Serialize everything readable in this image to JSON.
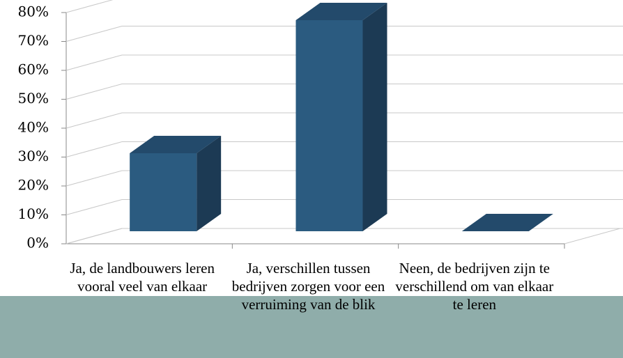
{
  "chart_data": {
    "type": "bar3d",
    "categories": [
      "Ja, de landbouwers leren vooral veel van elkaar",
      "Ja, verschillen tussen bedrijven zorgen voor een verruiming van de blik",
      "Neen, de bedrijven zijn te verschillend om van elkaar te leren"
    ],
    "values": [
      27,
      73,
      0
    ],
    "color": "#2b5b80",
    "ylim": [
      0,
      80
    ],
    "yticks": [
      {
        "value": 0,
        "label": "0%"
      },
      {
        "value": 10,
        "label": "10%"
      },
      {
        "value": 20,
        "label": "20%"
      },
      {
        "value": 30,
        "label": "30%"
      },
      {
        "value": 40,
        "label": "40%"
      },
      {
        "value": 50,
        "label": "50%"
      },
      {
        "value": 60,
        "label": "60%"
      },
      {
        "value": 70,
        "label": "70%"
      },
      {
        "value": 80,
        "label": "80%"
      }
    ],
    "grid": true
  }
}
